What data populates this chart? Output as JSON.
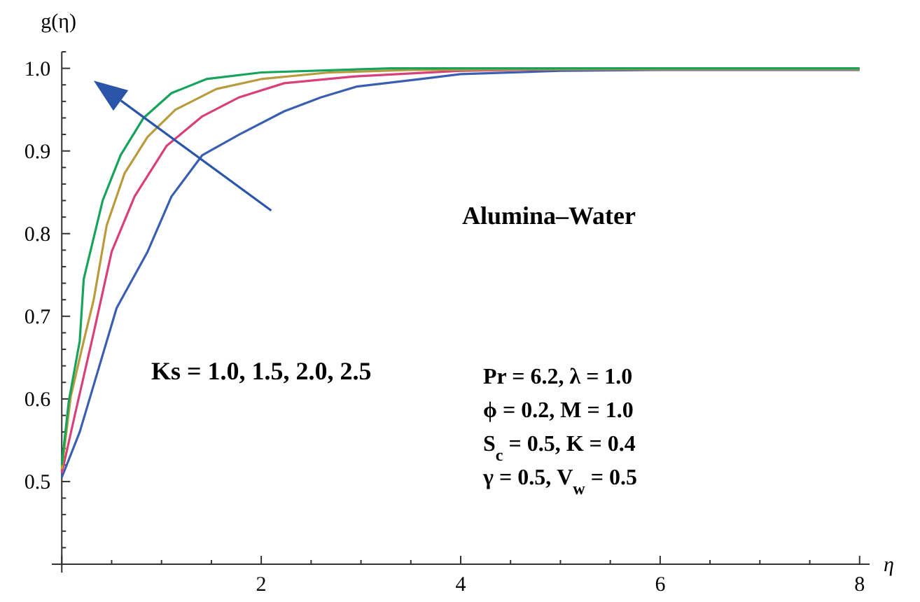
{
  "chart_data": {
    "type": "line",
    "xlabel": "η",
    "ylabel": "g(η)",
    "xlim": [
      -0.1,
      8.1
    ],
    "ylim": [
      0.4,
      1.02
    ],
    "xticks": [
      {
        "value": 0,
        "label": null
      },
      2,
      4,
      6,
      8
    ],
    "yticks": [
      0.5,
      0.6,
      0.7,
      0.8,
      0.9,
      {
        "value": 1.0,
        "label": "1.0"
      }
    ],
    "marker": "none",
    "line_style": "solid",
    "series": [
      {
        "color": "#3a5fb0",
        "x": [
          0,
          0.18,
          0.55,
          0.86,
          1.1,
          1.41,
          1.78,
          2.23,
          2.6,
          2.96,
          3.6,
          4,
          5,
          6,
          8
        ],
        "values": [
          0.505,
          0.56,
          0.71,
          0.778,
          0.845,
          0.895,
          0.92,
          0.948,
          0.965,
          0.978,
          0.987,
          0.993,
          0.997,
          0.998,
          0.998
        ]
      },
      {
        "color": "#d9407a",
        "x": [
          0,
          0.13,
          0.32,
          0.5,
          0.73,
          1.05,
          1.41,
          1.78,
          2.23,
          2.92,
          3.37,
          4,
          5,
          8
        ],
        "values": [
          0.51,
          0.58,
          0.68,
          0.778,
          0.845,
          0.906,
          0.942,
          0.965,
          0.982,
          0.99,
          0.993,
          0.997,
          0.999,
          0.999
        ]
      },
      {
        "color": "#b99a3c",
        "x": [
          0,
          0.09,
          0.22,
          0.32,
          0.45,
          0.63,
          0.86,
          1.14,
          1.55,
          2.0,
          2.68,
          3.5,
          5,
          8
        ],
        "values": [
          0.515,
          0.603,
          0.67,
          0.72,
          0.81,
          0.873,
          0.917,
          0.95,
          0.975,
          0.987,
          0.995,
          0.998,
          0.999,
          0.999
        ]
      },
      {
        "color": "#16a35a",
        "x": [
          0,
          0.07,
          0.18,
          0.22,
          0.41,
          0.59,
          0.82,
          1.1,
          1.45,
          2.0,
          3.3,
          5,
          8
        ],
        "values": [
          0.52,
          0.597,
          0.67,
          0.745,
          0.84,
          0.895,
          0.94,
          0.97,
          0.987,
          0.995,
          1.0,
          1.0,
          1.0
        ]
      }
    ],
    "annotations": [
      "Alumina‒Water",
      "Ks = 1.0,  1.5,  2.0,  2.5",
      "Pr = 6.2,  λ = 1.0",
      "ϕ = 0.2,  M = 1.0",
      "S$_{c}$ = 0.5,  K = 0.4",
      "γ = 0.5,  V$_{w}$ = 0.5"
    ]
  }
}
